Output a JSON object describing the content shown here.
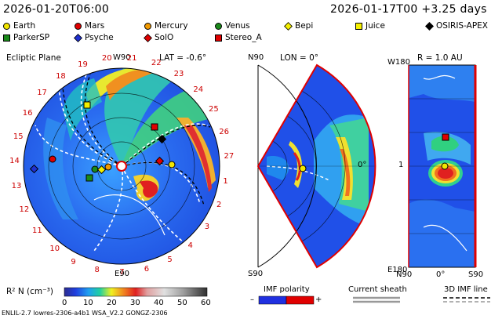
{
  "header": {
    "model_time": "2026-01-20T06:00",
    "run_time": "2026-01-17T00 +3.25 days"
  },
  "legend": [
    {
      "name": "Earth",
      "shape": "circle",
      "color": "#f2e600"
    },
    {
      "name": "Mars",
      "shape": "circle",
      "color": "#e00000"
    },
    {
      "name": "Mercury",
      "shape": "circle",
      "color": "#f29a00"
    },
    {
      "name": "Venus",
      "shape": "circle",
      "color": "#1a8a1a"
    },
    {
      "name": "Bepi",
      "shape": "diamond",
      "color": "#f5f000"
    },
    {
      "name": "Juice",
      "shape": "square",
      "color": "#f5f000"
    },
    {
      "name": "OSIRIS-APEX",
      "shape": "diamond",
      "color": "#000000"
    },
    {
      "name": "ParkerSP",
      "shape": "square",
      "color": "#1a8a1a"
    },
    {
      "name": "Psyche",
      "shape": "diamond",
      "color": "#2030d0"
    },
    {
      "name": "SolO",
      "shape": "diamond",
      "color": "#e00000"
    },
    {
      "name": "Stereo_A",
      "shape": "square",
      "color": "#e00000"
    }
  ],
  "ecliptic": {
    "title": "Ecliptic Plane",
    "lat": "LAT = -0.6°",
    "top": "W90",
    "bottom": "E90",
    "carrington_labels": [
      "20",
      "21",
      "22",
      "23",
      "24",
      "25",
      "26",
      "27",
      "1",
      "2",
      "3",
      "4",
      "5",
      "6",
      "7",
      "8",
      "9",
      "10",
      "11",
      "12",
      "13",
      "14",
      "15",
      "16",
      "17",
      "18",
      "19"
    ]
  },
  "meridional": {
    "lon": "LON = 0°",
    "top": "N90",
    "bottom": "S90",
    "right": "0°"
  },
  "radial": {
    "r": "R = 1.0 AU",
    "top_left": "W180",
    "bottom_left": "E180",
    "y_mid": "1",
    "x_left": "N90",
    "x_mid": "0°",
    "x_right": "S90"
  },
  "colorbar": {
    "label": "R² N (cm⁻³)",
    "ticks": [
      "0",
      "10",
      "20",
      "30",
      "40",
      "50",
      "60"
    ],
    "range": [
      0,
      60
    ]
  },
  "imf": {
    "label": "IMF polarity",
    "minus": "–",
    "plus": "+"
  },
  "sheath": {
    "label": "Current sheath"
  },
  "imfline": {
    "label": "3D IMF line"
  },
  "footer": "ENLIL-2.7 lowres-2306-a4b1 WSA_V2.2 GONGZ-2306"
}
